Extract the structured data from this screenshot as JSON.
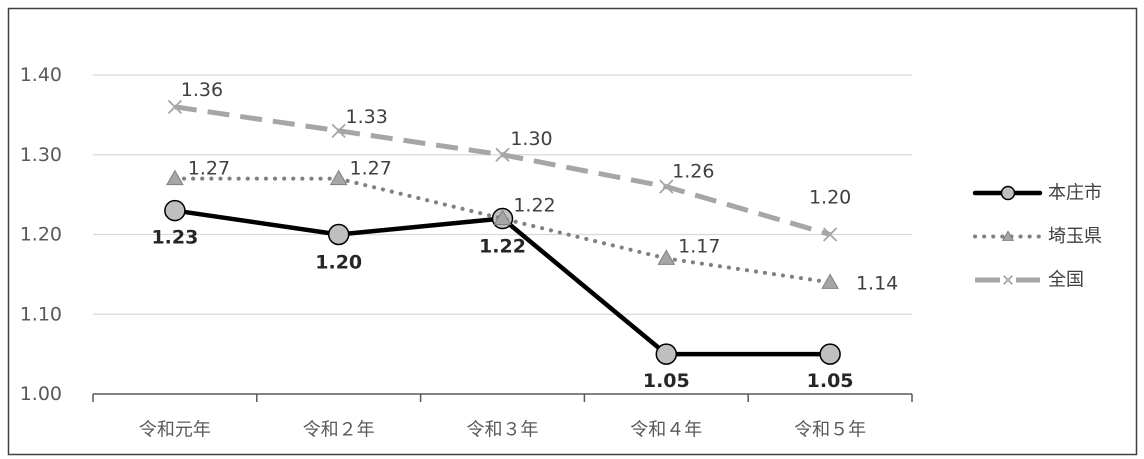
{
  "chart_data": {
    "type": "line",
    "categories": [
      "令和元年",
      "令和２年",
      "令和３年",
      "令和４年",
      "令和５年"
    ],
    "ylim": [
      1.0,
      1.4
    ],
    "yticks": [
      "1.00",
      "1.10",
      "1.20",
      "1.30",
      "1.40"
    ],
    "grid": true,
    "legend_position": "right",
    "series": [
      {
        "name": "本庄市",
        "values": [
          1.23,
          1.2,
          1.22,
          1.05,
          1.05
        ],
        "data_labels": [
          "1.23",
          "1.20",
          "1.22",
          "1.05",
          "1.05"
        ],
        "color": "#000000",
        "marker_fill": "#bfbfbf",
        "marker": "circle",
        "line_style": "solid"
      },
      {
        "name": "埼玉県",
        "values": [
          1.27,
          1.27,
          1.22,
          1.17,
          1.14
        ],
        "data_labels": [
          "1.27",
          "1.27",
          "1.22",
          "1.17",
          "1.14"
        ],
        "color": "#808080",
        "marker_fill": "#a6a6a6",
        "marker": "triangle",
        "line_style": "dotted"
      },
      {
        "name": "全国",
        "values": [
          1.36,
          1.33,
          1.3,
          1.26,
          1.2
        ],
        "data_labels": [
          "1.36",
          "1.33",
          "1.30",
          "1.26",
          "1.20"
        ],
        "color": "#a6a6a6",
        "marker_fill": "#a6a6a6",
        "marker": "x",
        "line_style": "dashed"
      }
    ]
  }
}
